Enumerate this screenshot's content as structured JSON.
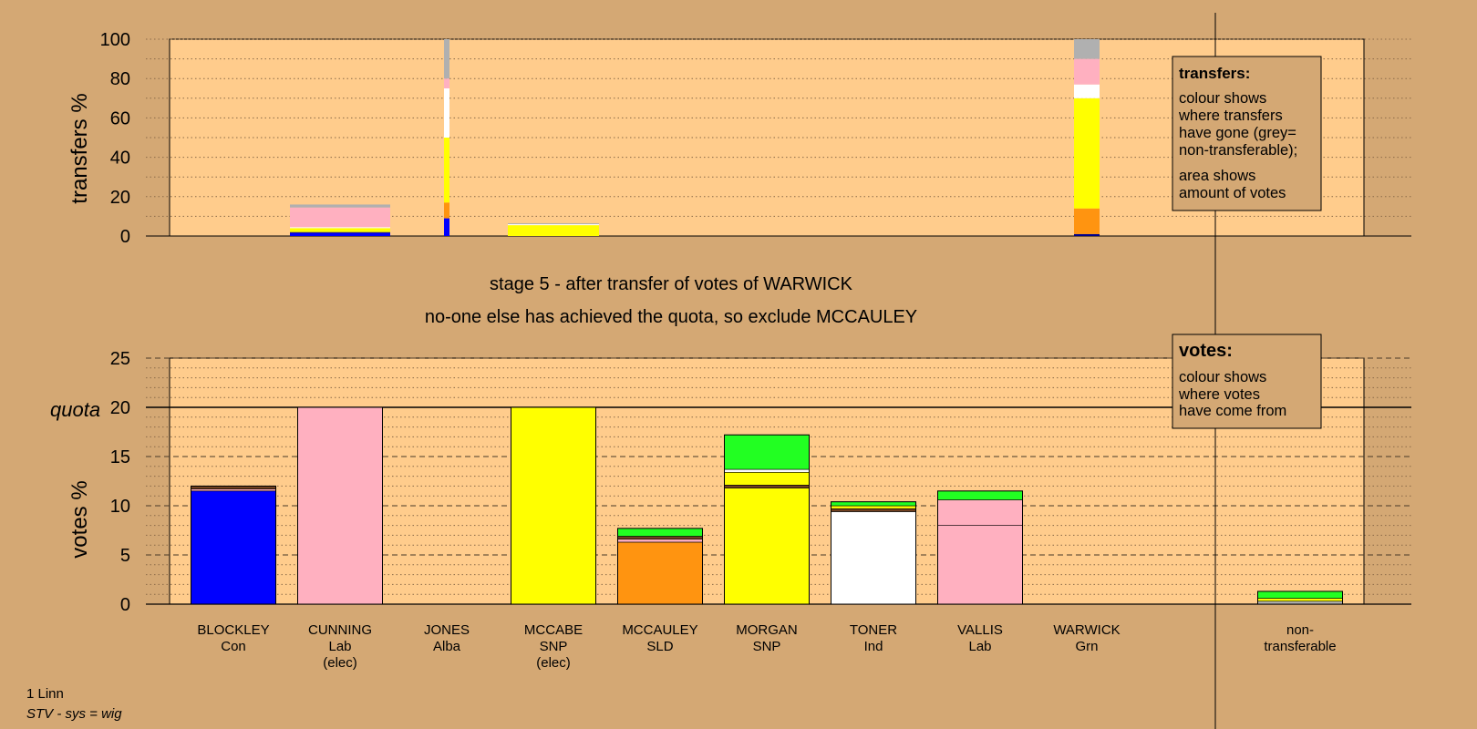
{
  "captions": {
    "stage": "stage 5 - after transfer of votes of WARWICK",
    "note": "no-one else has achieved the quota, so exclude MCCAULEY"
  },
  "footer": {
    "constituency": "1 Linn",
    "system": "STV - sys = wig"
  },
  "colors": {
    "page_bg": "#d4a874",
    "plot_bg": "#ffcc8c",
    "Con": "#0000ff",
    "Lab": "#ffb0c0",
    "Alba": "#00008b",
    "SNP": "#ffff00",
    "SLD": "#ff9410",
    "Ind": "#ffffff",
    "Grn": "#22ff22",
    "nontransferable": "#b0b0b0",
    "dark": "#704020"
  },
  "chart_data": [
    {
      "id": "transfers",
      "type": "bar",
      "ylabel": "transfers %",
      "ylim": [
        0,
        100
      ],
      "yticks": [
        0,
        20,
        40,
        60,
        80,
        100
      ],
      "legend": {
        "title": "transfers:",
        "lines1": [
          "colour shows",
          "where transfers",
          "have gone (grey=",
          "non-transferable);"
        ],
        "lines2": [
          "area shows",
          "amount of votes"
        ]
      },
      "bars": [
        {
          "candidate": "CUNNING",
          "segments": [
            {
              "color": "Con",
              "value": 1.5
            },
            {
              "color": "Alba",
              "value": 0.5
            },
            {
              "color": "SNP",
              "value": 2
            },
            {
              "color": "Ind",
              "value": 0.5
            },
            {
              "color": "Lab",
              "value": 10
            },
            {
              "color": "nontransferable",
              "value": 1.5
            }
          ]
        },
        {
          "candidate": "JONES",
          "segments": [
            {
              "color": "Con",
              "value": 9
            },
            {
              "color": "SLD",
              "value": 8
            },
            {
              "color": "SNP",
              "value": 33
            },
            {
              "color": "Ind",
              "value": 25
            },
            {
              "color": "Lab",
              "value": 5
            },
            {
              "color": "nontransferable",
              "value": 20
            }
          ]
        },
        {
          "candidate": "MCCABE",
          "segments": [
            {
              "color": "SNP",
              "value": 5.5
            },
            {
              "color": "Ind",
              "value": 0.5
            },
            {
              "color": "nontransferable",
              "value": 0.5
            }
          ]
        },
        {
          "candidate": "WARWICK",
          "segments": [
            {
              "color": "Alba",
              "value": 1
            },
            {
              "color": "SLD",
              "value": 13
            },
            {
              "color": "SNP",
              "value": 56
            },
            {
              "color": "Ind",
              "value": 7
            },
            {
              "color": "Lab",
              "value": 13
            },
            {
              "color": "nontransferable",
              "value": 10
            }
          ]
        }
      ]
    },
    {
      "id": "votes",
      "type": "bar",
      "ylabel": "votes %",
      "ylim": [
        0,
        25
      ],
      "yticks": [
        0,
        5,
        10,
        15,
        20,
        25
      ],
      "quota": 20,
      "quota_label": "quota",
      "legend": {
        "title": "votes:",
        "lines": [
          "colour shows",
          "where votes",
          "have come from"
        ]
      },
      "categories": [
        {
          "name": "BLOCKLEY",
          "party": "Con",
          "status": ""
        },
        {
          "name": "CUNNING",
          "party": "Lab",
          "status": "(elec)"
        },
        {
          "name": "JONES",
          "party": "Alba",
          "status": ""
        },
        {
          "name": "MCCABE",
          "party": "SNP",
          "status": "(elec)"
        },
        {
          "name": "MCCAULEY",
          "party": "SLD",
          "status": ""
        },
        {
          "name": "MORGAN",
          "party": "SNP",
          "status": ""
        },
        {
          "name": "TONER",
          "party": "Ind",
          "status": ""
        },
        {
          "name": "VALLIS",
          "party": "Lab",
          "status": ""
        },
        {
          "name": "WARWICK",
          "party": "Grn",
          "status": ""
        },
        {
          "name": "non-",
          "party": "transferable",
          "status": ""
        }
      ],
      "bars": [
        {
          "candidate": "BLOCKLEY",
          "segments": [
            {
              "color": "Con",
              "value": 11.5
            },
            {
              "color": "Lab",
              "value": 0.2
            },
            {
              "color": "dark",
              "value": 0.3
            }
          ]
        },
        {
          "candidate": "CUNNING",
          "segments": [
            {
              "color": "Lab",
              "value": 20
            }
          ]
        },
        {
          "candidate": "JONES",
          "segments": []
        },
        {
          "candidate": "MCCABE",
          "segments": [
            {
              "color": "SNP",
              "value": 20
            }
          ]
        },
        {
          "candidate": "MCCAULEY",
          "segments": [
            {
              "color": "SLD",
              "value": 6.3
            },
            {
              "color": "Lab",
              "value": 0.3
            },
            {
              "color": "dark",
              "value": 0.3
            },
            {
              "color": "Grn",
              "value": 0.8
            }
          ]
        },
        {
          "candidate": "MORGAN",
          "segments": [
            {
              "color": "SNP",
              "value": 11.8
            },
            {
              "color": "dark",
              "value": 0.3
            },
            {
              "color": "SNP",
              "value": 1.3
            },
            {
              "color": "Ind",
              "value": 0.3
            },
            {
              "color": "Grn",
              "value": 3.5
            }
          ]
        },
        {
          "candidate": "TONER",
          "segments": [
            {
              "color": "Ind",
              "value": 9.4
            },
            {
              "color": "dark",
              "value": 0.3
            },
            {
              "color": "SNP",
              "value": 0.3
            },
            {
              "color": "Grn",
              "value": 0.4
            }
          ]
        },
        {
          "candidate": "VALLIS",
          "segments": [
            {
              "color": "Lab",
              "value": 8.0
            },
            {
              "color": "Lab",
              "value": 2.6
            },
            {
              "color": "Grn",
              "value": 0.9
            }
          ]
        },
        {
          "candidate": "WARWICK",
          "segments": []
        },
        {
          "candidate": "non-transferable",
          "segments": [
            {
              "color": "nontransferable",
              "value": 0.3
            },
            {
              "color": "SNP",
              "value": 0.3
            },
            {
              "color": "Grn",
              "value": 0.7
            }
          ]
        }
      ]
    }
  ]
}
